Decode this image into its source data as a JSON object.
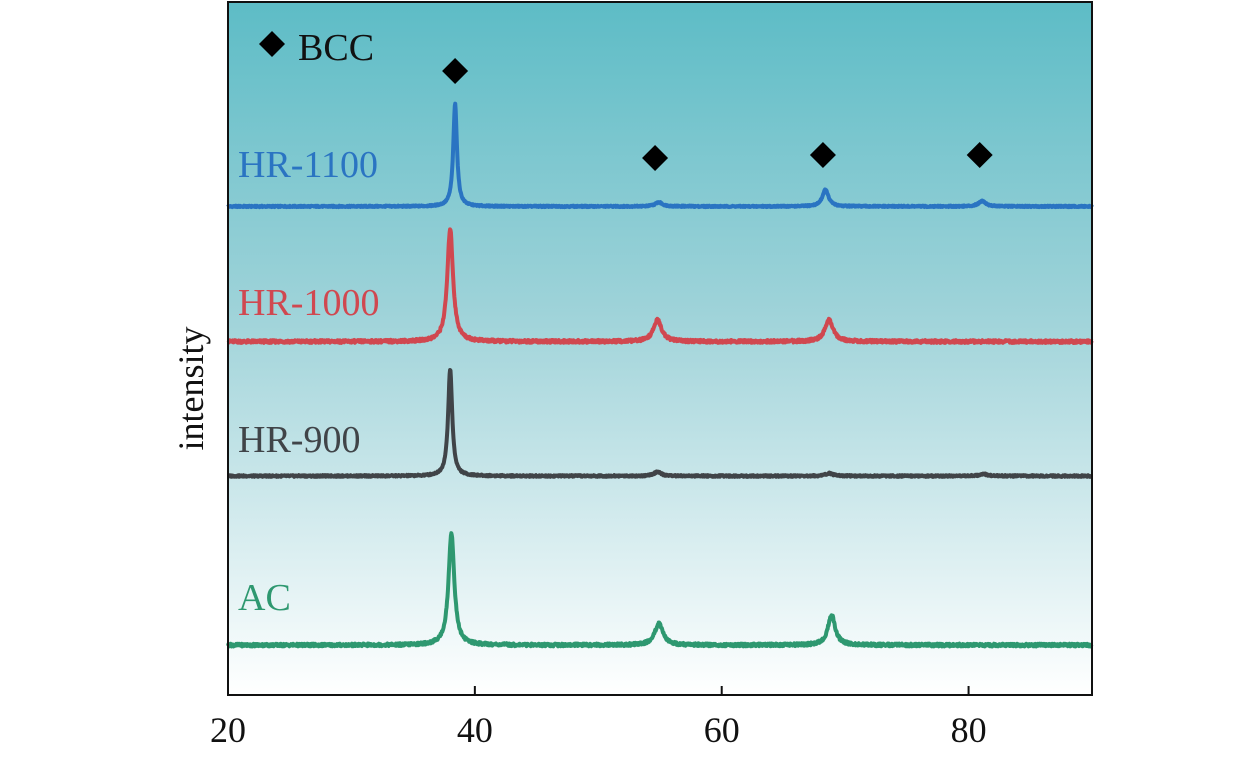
{
  "chart_data": {
    "type": "line",
    "ylabel": "intensity",
    "xlim": [
      20,
      90
    ],
    "xticks": [
      20,
      40,
      60,
      80
    ],
    "tick_labels": [
      "20",
      "40",
      "60",
      "80"
    ],
    "legend": {
      "symbol": "diamond",
      "label": "BCC",
      "placement": "top-left"
    },
    "bcc_peaks_x": [
      38.4,
      54.6,
      68.2,
      80.9
    ],
    "background": {
      "top": "#5dbcc6",
      "bottom": "#ffffff"
    },
    "series": [
      {
        "name": "HR-1100",
        "color": "#2a74c2",
        "baseline": 0.705,
        "noise": 0.001,
        "peaks": [
          {
            "x": 38.4,
            "height": 0.148,
            "width": 0.18
          },
          {
            "x": 54.9,
            "height": 0.006,
            "width": 0.35
          },
          {
            "x": 68.4,
            "height": 0.024,
            "width": 0.3
          },
          {
            "x": 81.1,
            "height": 0.008,
            "width": 0.35
          }
        ]
      },
      {
        "name": "HR-1000",
        "color": "#d04850",
        "baseline": 0.51,
        "noise": 0.002,
        "peaks": [
          {
            "x": 38.0,
            "height": 0.163,
            "width": 0.28
          },
          {
            "x": 54.8,
            "height": 0.031,
            "width": 0.4
          },
          {
            "x": 68.7,
            "height": 0.031,
            "width": 0.4
          }
        ]
      },
      {
        "name": "HR-900",
        "color": "#404448",
        "baseline": 0.316,
        "noise": 0.0012,
        "peaks": [
          {
            "x": 38.0,
            "height": 0.154,
            "width": 0.2
          },
          {
            "x": 54.8,
            "height": 0.006,
            "width": 0.35
          },
          {
            "x": 68.7,
            "height": 0.004,
            "width": 0.35
          },
          {
            "x": 81.2,
            "height": 0.003,
            "width": 0.35
          }
        ]
      },
      {
        "name": "AC",
        "color": "#2e9870",
        "baseline": 0.072,
        "noise": 0.002,
        "peaks": [
          {
            "x": 38.1,
            "height": 0.162,
            "width": 0.28
          },
          {
            "x": 54.9,
            "height": 0.031,
            "width": 0.4
          },
          {
            "x": 68.9,
            "height": 0.044,
            "width": 0.35
          }
        ]
      }
    ]
  }
}
